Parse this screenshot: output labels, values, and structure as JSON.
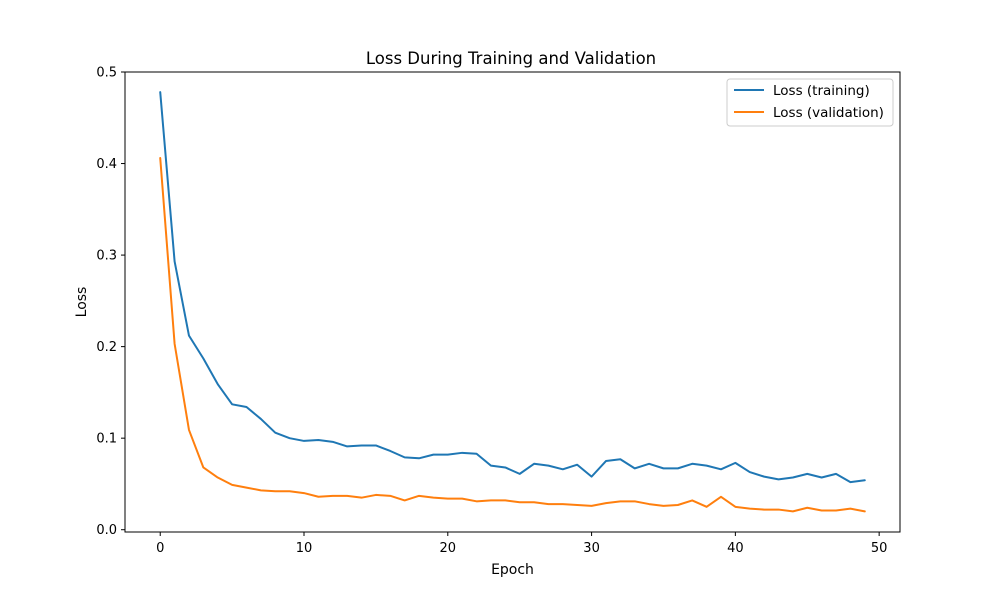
{
  "chart_data": {
    "type": "line",
    "title": "Loss During Training and Validation",
    "xlabel": "Epoch",
    "ylabel": "Loss",
    "xlim": [
      -2.45,
      51.45
    ],
    "ylim": [
      -0.0025,
      0.5
    ],
    "xticks": [
      0,
      10,
      20,
      30,
      40,
      50
    ],
    "xtick_labels": [
      "0",
      "10",
      "20",
      "30",
      "40",
      "50"
    ],
    "yticks": [
      0.0,
      0.1,
      0.2,
      0.3,
      0.4,
      0.5
    ],
    "ytick_labels": [
      "0.0",
      "0.1",
      "0.2",
      "0.3",
      "0.4",
      "0.5"
    ],
    "grid": false,
    "legend_position": "top-right",
    "x": [
      0,
      1,
      2,
      3,
      4,
      5,
      6,
      7,
      8,
      9,
      10,
      11,
      12,
      13,
      14,
      15,
      16,
      17,
      18,
      19,
      20,
      21,
      22,
      23,
      24,
      25,
      26,
      27,
      28,
      29,
      30,
      31,
      32,
      33,
      34,
      35,
      36,
      37,
      38,
      39,
      40,
      41,
      42,
      43,
      44,
      45,
      46,
      47,
      48,
      49
    ],
    "series": [
      {
        "name": "Loss (training)",
        "color": "#1f77b4",
        "values": [
          0.478,
          0.293,
          0.212,
          0.187,
          0.159,
          0.137,
          0.134,
          0.121,
          0.106,
          0.1,
          0.097,
          0.098,
          0.096,
          0.091,
          0.092,
          0.092,
          0.086,
          0.079,
          0.078,
          0.082,
          0.082,
          0.084,
          0.083,
          0.07,
          0.068,
          0.061,
          0.072,
          0.07,
          0.066,
          0.071,
          0.058,
          0.075,
          0.077,
          0.067,
          0.072,
          0.067,
          0.067,
          0.072,
          0.07,
          0.066,
          0.073,
          0.063,
          0.058,
          0.055,
          0.057,
          0.061,
          0.057,
          0.061,
          0.052,
          0.054
        ]
      },
      {
        "name": "Loss (validation)",
        "color": "#ff7f0e",
        "values": [
          0.406,
          0.203,
          0.109,
          0.068,
          0.057,
          0.049,
          0.046,
          0.043,
          0.042,
          0.042,
          0.04,
          0.036,
          0.037,
          0.037,
          0.035,
          0.038,
          0.037,
          0.032,
          0.037,
          0.035,
          0.034,
          0.034,
          0.031,
          0.032,
          0.032,
          0.03,
          0.03,
          0.028,
          0.028,
          0.027,
          0.026,
          0.029,
          0.031,
          0.031,
          0.028,
          0.026,
          0.027,
          0.032,
          0.025,
          0.036,
          0.025,
          0.023,
          0.022,
          0.022,
          0.02,
          0.024,
          0.021,
          0.021,
          0.023,
          0.02
        ]
      }
    ]
  }
}
